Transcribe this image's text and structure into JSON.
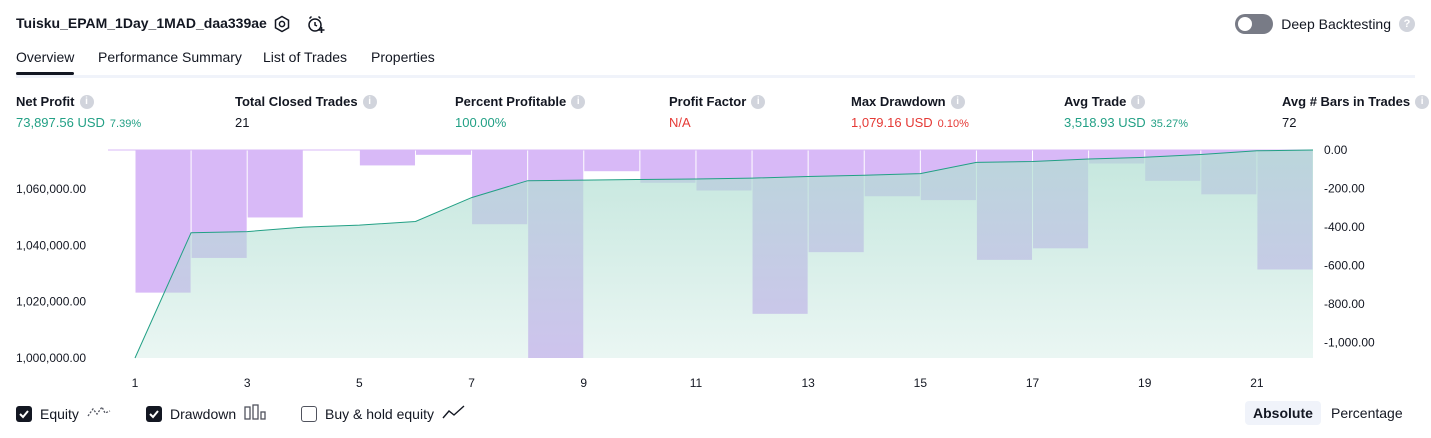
{
  "header": {
    "title": "Tuisku_EPAM_1Day_1MAD_daa339ae",
    "deep_backtesting_label": "Deep Backtesting",
    "help_glyph": "?"
  },
  "tabs": [
    {
      "label": "Overview",
      "active": true
    },
    {
      "label": "Performance Summary"
    },
    {
      "label": "List of Trades"
    },
    {
      "label": "Properties"
    }
  ],
  "metrics": [
    {
      "label": "Net Profit",
      "value": "73,897.56 USD",
      "sub": "7.39%",
      "tone": "green"
    },
    {
      "label": "Total Closed Trades",
      "value": "21",
      "sub": "",
      "tone": "dark"
    },
    {
      "label": "Percent Profitable",
      "value": "100.00%",
      "sub": "",
      "tone": "green"
    },
    {
      "label": "Profit Factor",
      "value": "N/A",
      "sub": "",
      "tone": "red"
    },
    {
      "label": "Max Drawdown",
      "value": "1,079.16 USD",
      "sub": "0.10%",
      "tone": "red"
    },
    {
      "label": "Avg Trade",
      "value": "3,518.93 USD",
      "sub": "35.27%",
      "tone": "green"
    },
    {
      "label": "Avg # Bars in Trades",
      "value": "72",
      "sub": "",
      "tone": "dark"
    }
  ],
  "info_glyph": "i",
  "legend": {
    "equity_label": "Equity",
    "drawdown_label": "Drawdown",
    "buyhold_label": "Buy & hold equity",
    "equity_checked": true,
    "drawdown_checked": true,
    "buyhold_checked": false
  },
  "modes": {
    "absolute": "Absolute",
    "percentage": "Percentage",
    "active": "Absolute"
  },
  "colors": {
    "equity_line": "#22a085",
    "equity_fill_top": "#b2dfd3",
    "drawdown_fill": "#d8b9f7",
    "positive": "#22a085",
    "negative": "#e53935"
  },
  "chart_data": {
    "type": "area",
    "x": [
      1,
      2,
      3,
      4,
      5,
      6,
      7,
      8,
      9,
      10,
      11,
      12,
      13,
      14,
      15,
      16,
      17,
      18,
      19,
      20,
      21,
      22
    ],
    "x_ticks": [
      "1",
      "3",
      "5",
      "7",
      "9",
      "11",
      "13",
      "15",
      "17",
      "19",
      "21"
    ],
    "series": [
      {
        "name": "Equity",
        "axis": "left",
        "values": [
          1000000,
          1044500,
          1044900,
          1046500,
          1047200,
          1048500,
          1057000,
          1063000,
          1063200,
          1063400,
          1063600,
          1063900,
          1064500,
          1064900,
          1065500,
          1069500,
          1069800,
          1070700,
          1071300,
          1072300,
          1073600,
          1073897.56
        ]
      },
      {
        "name": "Drawdown",
        "axis": "right",
        "bars": [
          {
            "x": 2,
            "value": -740
          },
          {
            "x": 3,
            "value": -560
          },
          {
            "x": 4,
            "value": -350
          },
          {
            "x": 6,
            "value": -80
          },
          {
            "x": 7,
            "value": -25
          },
          {
            "x": 8,
            "value": -385
          },
          {
            "x": 9,
            "value": -1079.16
          },
          {
            "x": 10,
            "value": -110
          },
          {
            "x": 11,
            "value": -170
          },
          {
            "x": 12,
            "value": -210
          },
          {
            "x": 13,
            "value": -850
          },
          {
            "x": 14,
            "value": -530
          },
          {
            "x": 15,
            "value": -240
          },
          {
            "x": 16,
            "value": -260
          },
          {
            "x": 17,
            "value": -570
          },
          {
            "x": 18,
            "value": -510
          },
          {
            "x": 19,
            "value": -70
          },
          {
            "x": 20,
            "value": -160
          },
          {
            "x": 21,
            "value": -230
          },
          {
            "x": 22,
            "value": -620
          }
        ]
      }
    ],
    "y_left_ticks": [
      "1,000,000.00",
      "1,020,000.00",
      "1,040,000.00",
      "1,060,000.00"
    ],
    "y_left_tick_values": [
      1000000,
      1020000,
      1040000,
      1060000
    ],
    "y_left_range": [
      1000000,
      1073897.56
    ],
    "y_right_ticks": [
      "0.00",
      "-200.00",
      "-400.00",
      "-600.00",
      "-800.00",
      "-1,000.00"
    ],
    "y_right_tick_values": [
      0,
      -200,
      -400,
      -600,
      -800,
      -1000
    ],
    "y_right_range": [
      -1079.16,
      0
    ],
    "grid": false
  }
}
